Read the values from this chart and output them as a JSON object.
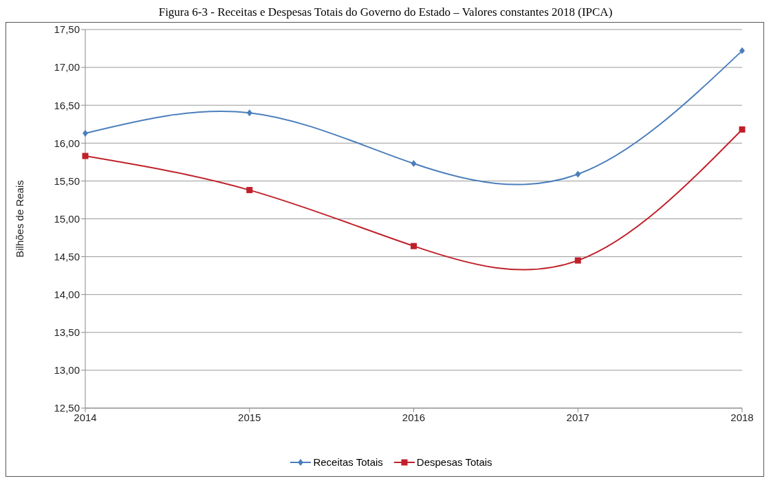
{
  "chart_data": {
    "type": "line",
    "title": "Figura 6-3 - Receitas e Despesas Totais do Governo do Estado – Valores constantes 2018 (IPCA)",
    "ylabel": "Bilhões de Reais",
    "categories": [
      "2014",
      "2015",
      "2016",
      "2017",
      "2018"
    ],
    "series": [
      {
        "name": "Receitas Totais",
        "color": "#4a7ebb",
        "marker": "diamond",
        "values": [
          16.13,
          16.4,
          15.73,
          15.59,
          17.22
        ]
      },
      {
        "name": "Despesas Totais",
        "color": "#c0202a",
        "marker": "square",
        "values": [
          15.83,
          15.38,
          14.64,
          14.45,
          16.18
        ]
      }
    ],
    "ylim": [
      12.5,
      17.5
    ],
    "yticks": [
      {
        "value": 12.5,
        "label": "12,50"
      },
      {
        "value": 13,
        "label": "13,00"
      },
      {
        "value": 13.5,
        "label": "13,50"
      },
      {
        "value": 14,
        "label": "14,00"
      },
      {
        "value": 14.5,
        "label": "14,50"
      },
      {
        "value": 15,
        "label": "15,00"
      },
      {
        "value": 15.5,
        "label": "15,50"
      },
      {
        "value": 16,
        "label": "16,00"
      },
      {
        "value": 16.5,
        "label": "16,50"
      },
      {
        "value": 17,
        "label": "17,00"
      },
      {
        "value": 17.5,
        "label": "17,50"
      }
    ],
    "grid": "y",
    "legend": "bottom"
  }
}
